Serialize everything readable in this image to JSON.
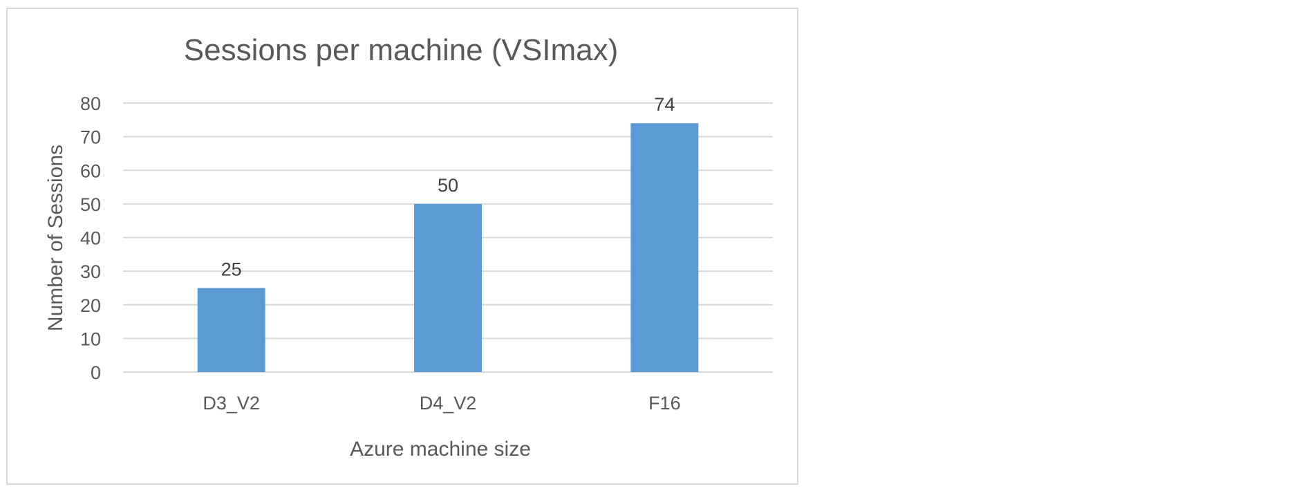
{
  "chart_data": {
    "type": "bar",
    "title": "Sessions per machine (VSImax)",
    "xlabel": "Azure machine size",
    "ylabel": "Number of Sessions",
    "categories": [
      "D3_V2",
      "D4_V2",
      "F16"
    ],
    "values": [
      25,
      50,
      74
    ],
    "data_labels": [
      "25",
      "50",
      "74"
    ],
    "ylim": [
      0,
      80
    ],
    "yticks": [
      "0",
      "10",
      "20",
      "30",
      "40",
      "50",
      "60",
      "70",
      "80"
    ],
    "grid": true,
    "legend": "none",
    "colors": {
      "bar": "#5b9bd5",
      "gridline": "#d9d9d9",
      "text": "#595959"
    }
  }
}
